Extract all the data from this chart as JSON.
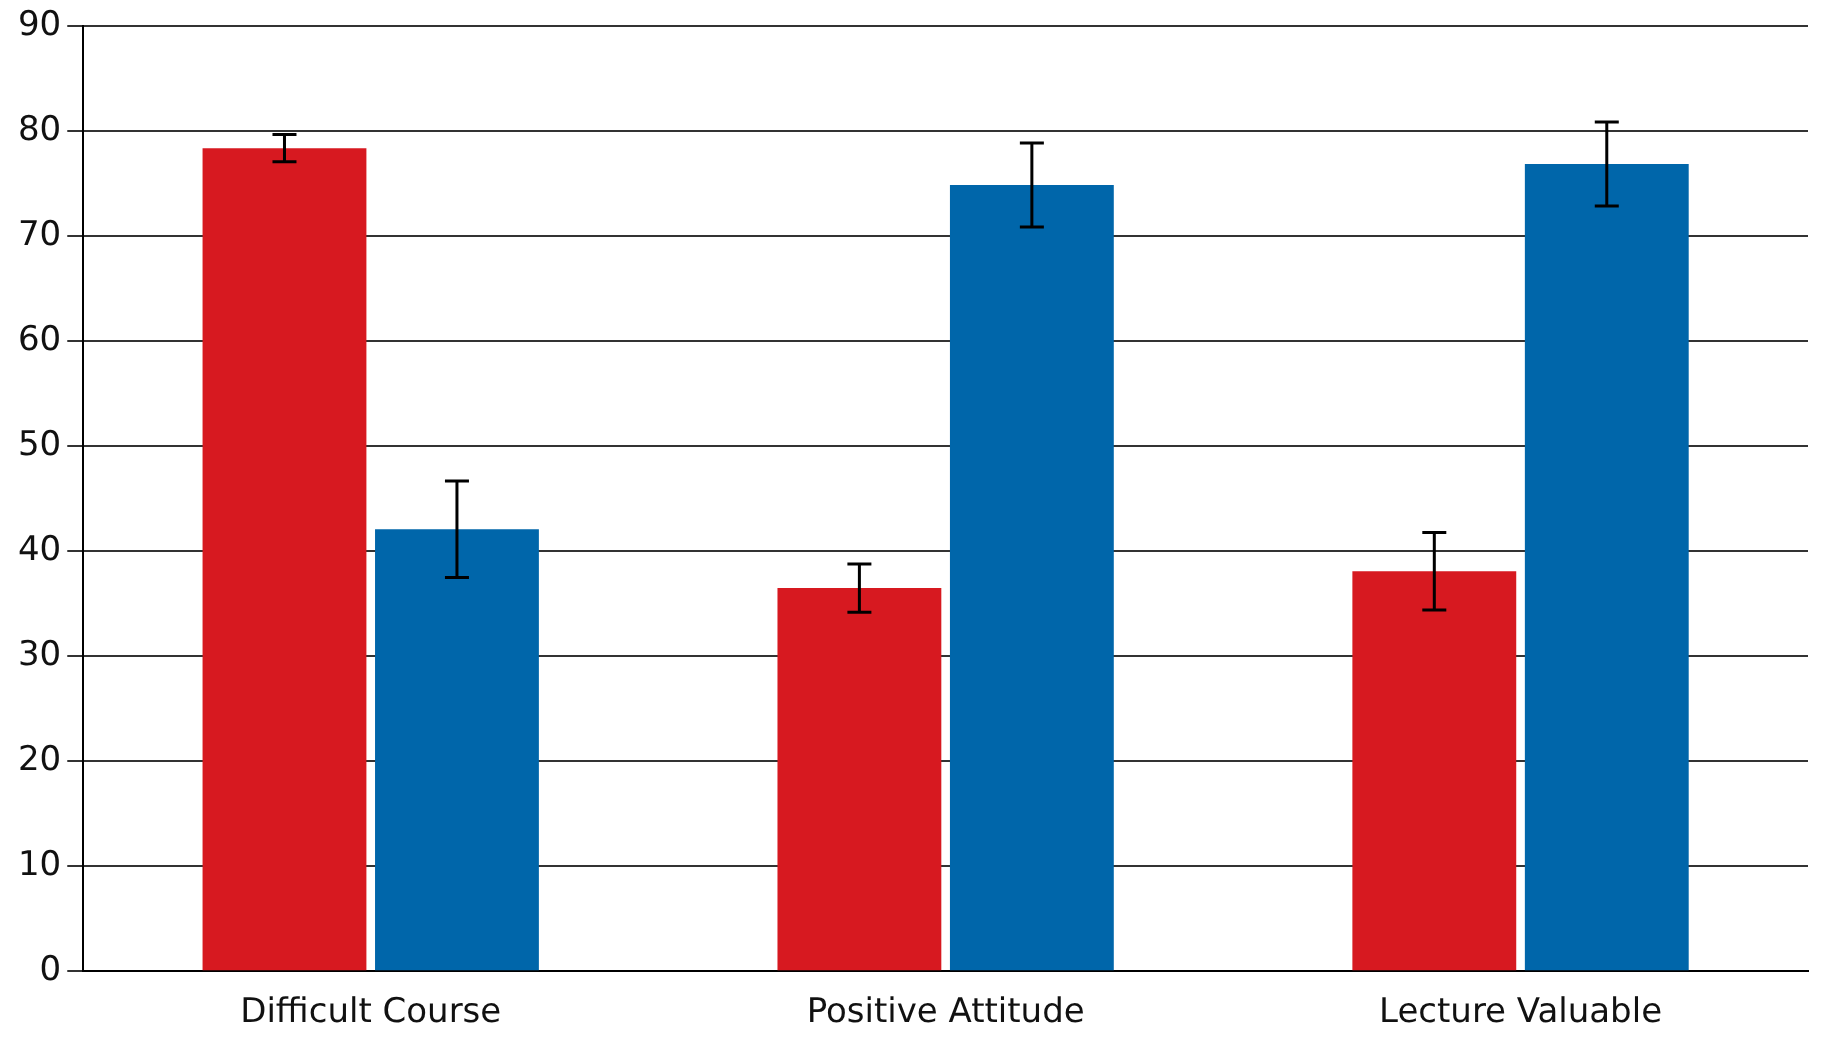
{
  "chart_data": {
    "type": "bar",
    "categories": [
      "Difficult Course",
      "Positive Attitude",
      "Lecture Valuable"
    ],
    "series": [
      {
        "color": "#d71920",
        "values": [
          78.4,
          36.5,
          38.1
        ],
        "errors": [
          1.3,
          2.3,
          3.7
        ]
      },
      {
        "color": "#0066aa",
        "values": [
          42.1,
          74.9,
          76.9
        ],
        "errors": [
          4.6,
          4,
          4
        ]
      }
    ],
    "ylim": [
      0,
      90
    ],
    "yticks": [
      0,
      10,
      20,
      30,
      40,
      50,
      60,
      70,
      80,
      90
    ],
    "grid": "y",
    "legend": false
  }
}
